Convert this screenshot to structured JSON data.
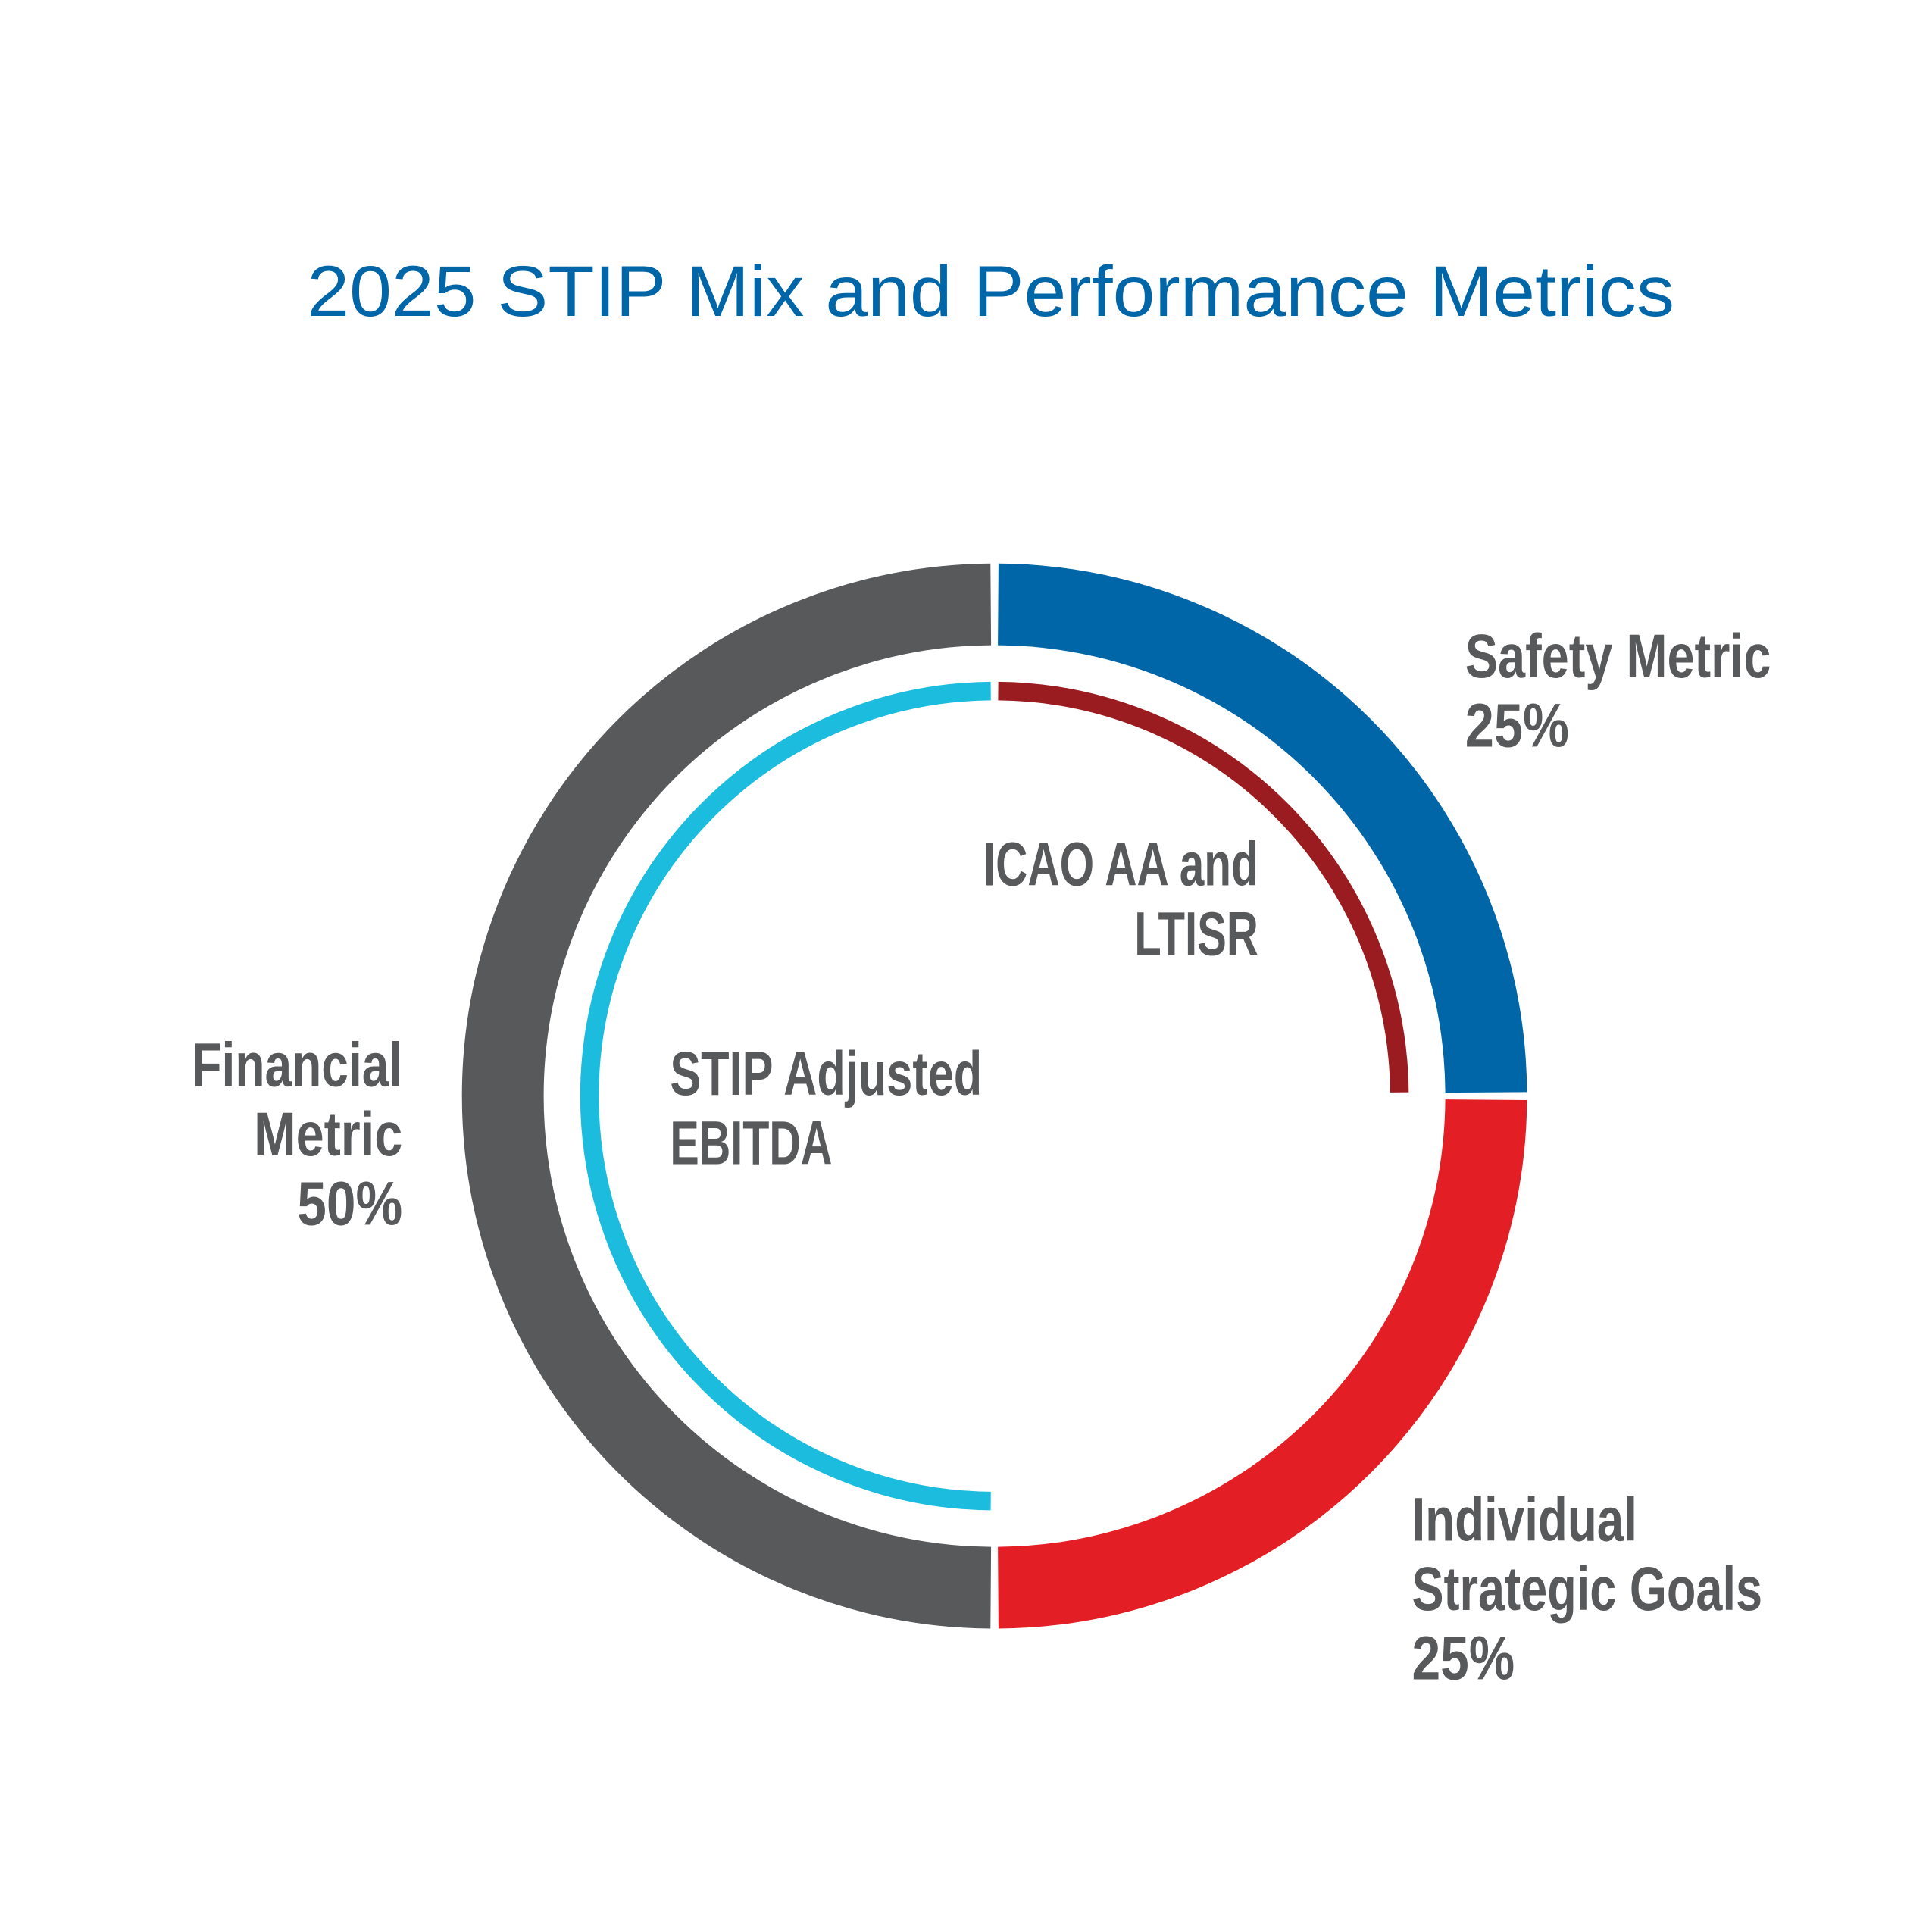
{
  "chart_data": {
    "type": "pie",
    "variant": "double-ring donut",
    "title": "2025 STIP Mix and Performance Metrics",
    "title_color": "#0066A8",
    "label_color": "#58595B",
    "outer_ring": [
      {
        "name": "Safety Metric",
        "value": 25,
        "value_label": "25%",
        "color": "#0066A8"
      },
      {
        "name": "Individual Strategic Goals",
        "value": 25,
        "value_label": "25%",
        "color": "#E31E24"
      },
      {
        "name": "Financial Metric",
        "value": 50,
        "value_label": "50%",
        "color": "#58595B"
      }
    ],
    "inner_ring": [
      {
        "name": "ICAO AA and LTISR",
        "value": 25,
        "color": "#9B1C20"
      },
      {
        "name": "",
        "value": 25,
        "color": "none"
      },
      {
        "name": "STIP Adjusted EBITDA",
        "value": 50,
        "color": "#1BBCDD"
      }
    ],
    "labels": {
      "safety": [
        "Safety Metric",
        "25%"
      ],
      "individual": [
        "Individual",
        "Strategic Goals",
        "25%"
      ],
      "financial": [
        "Financial",
        "Metric",
        "50%"
      ],
      "icao": [
        "ICAO AA and",
        "LTISR"
      ],
      "ebitda": [
        "STIP Adjusted",
        "EBITDA"
      ]
    }
  }
}
